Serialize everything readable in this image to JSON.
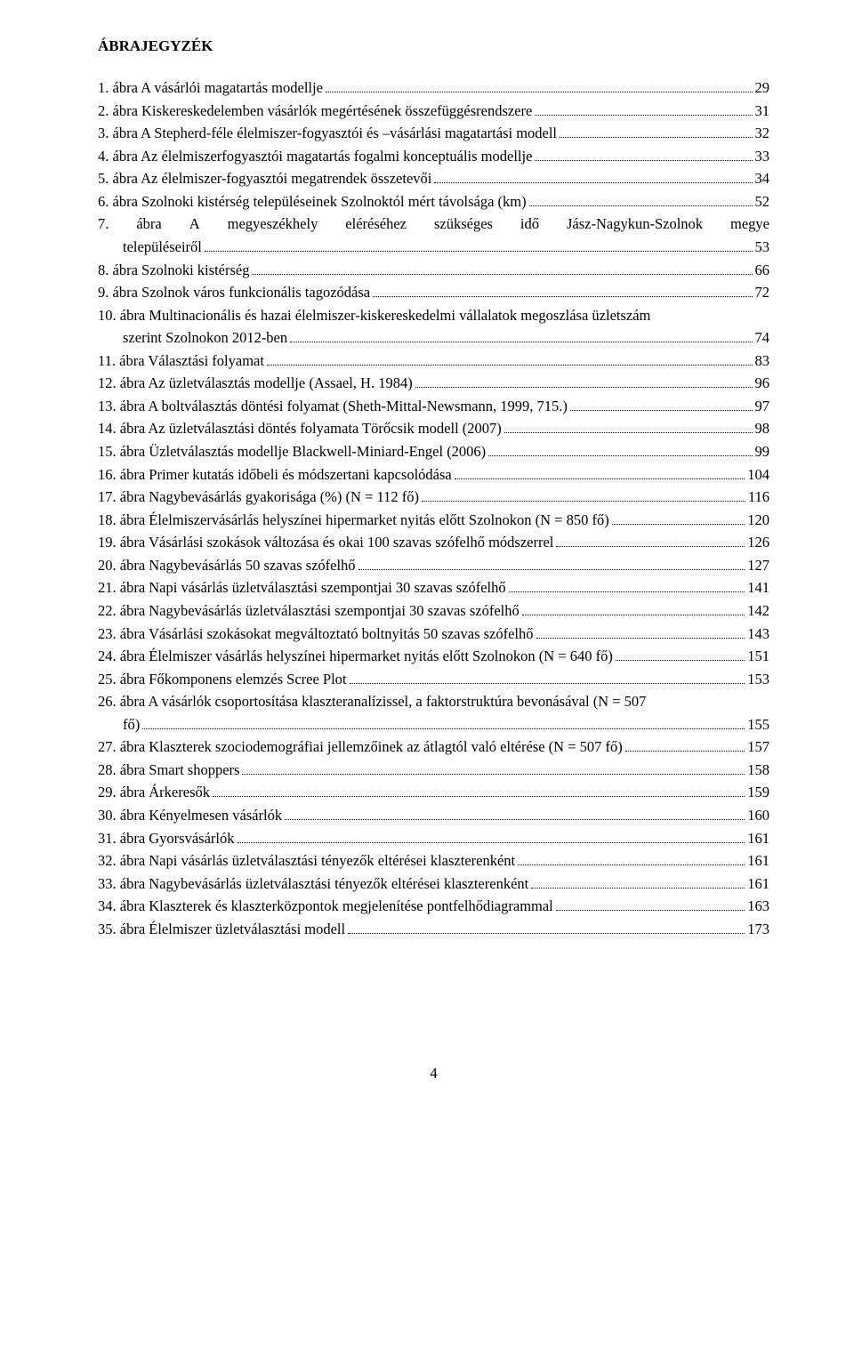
{
  "title": "ÁBRAJEGYZÉK",
  "page_number": "4",
  "entries": [
    {
      "type": "single",
      "label": "1. ábra A vásárlói magatartás modellje",
      "page": "29"
    },
    {
      "type": "single",
      "label": "2. ábra Kiskereskedelemben vásárlók megértésének összefüggésrendszere",
      "page": "31"
    },
    {
      "type": "single",
      "label": "3. ábra A Stepherd-féle élelmiszer-fogyasztói és –vásárlási magatartási modell",
      "page": "32"
    },
    {
      "type": "single",
      "label": "4. ábra Az élelmiszerfogyasztói magatartás fogalmi konceptuális modellje",
      "page": "33"
    },
    {
      "type": "single",
      "label": "5. ábra Az élelmiszer-fogyasztói megatrendek összetevői",
      "page": "34"
    },
    {
      "type": "single",
      "label": "6. ábra Szolnoki kistérség településeinek Szolnoktól mért távolsága (km)",
      "page": "52"
    },
    {
      "type": "justify",
      "words": [
        "7.",
        "ábra",
        "A",
        "megyeszékhely",
        "eléréséhez",
        "szükséges",
        "idő",
        "Jász-Nagykun-Szolnok",
        "megye"
      ],
      "cont_label": "településeiről",
      "page": "53"
    },
    {
      "type": "single",
      "label": "8. ábra Szolnoki kistérség",
      "page": "66"
    },
    {
      "type": "single",
      "label": "9. ábra Szolnok város funkcionális tagozódása",
      "page": "72"
    },
    {
      "type": "wrap",
      "label1": "10. ábra Multinacionális és hazai élelmiszer-kiskereskedelmi vállalatok megoszlása üzletszám",
      "label2": "szerint Szolnokon 2012-ben",
      "page": "74"
    },
    {
      "type": "single",
      "label": "11. ábra Választási folyamat",
      "page": "83"
    },
    {
      "type": "single",
      "label": "12. ábra Az üzletválasztás modellje (Assael, H. 1984)",
      "page": "96"
    },
    {
      "type": "single",
      "label": "13. ábra A boltválasztás döntési folyamat (Sheth-Mittal-Newsmann, 1999, 715.)",
      "page": "97"
    },
    {
      "type": "single",
      "label": "14. ábra Az üzletválasztási döntés folyamata Törőcsik modell (2007)",
      "page": "98"
    },
    {
      "type": "single",
      "label": "15. ábra Üzletválasztás modellje Blackwell-Miniard-Engel (2006)",
      "page": "99"
    },
    {
      "type": "single",
      "label": "16. ábra Primer kutatás időbeli és módszertani kapcsolódása",
      "page": "104"
    },
    {
      "type": "single",
      "label": "17. ábra Nagybevásárlás gyakorisága (%) (N = 112 fő)",
      "page": "116"
    },
    {
      "type": "single",
      "label": "18. ábra Élelmiszervásárlás helyszínei hipermarket nyitás előtt Szolnokon (N = 850 fő)",
      "page": "120"
    },
    {
      "type": "single",
      "label": "19. ábra Vásárlási szokások változása és okai 100 szavas szófelhő módszerrel",
      "page": "126"
    },
    {
      "type": "single",
      "label": "20. ábra Nagybevásárlás 50 szavas szófelhő",
      "page": "127"
    },
    {
      "type": "single",
      "label": "21. ábra Napi vásárlás üzletválasztási szempontjai 30 szavas szófelhő",
      "page": "141"
    },
    {
      "type": "single",
      "label": "22. ábra Nagybevásárlás üzletválasztási szempontjai 30 szavas szófelhő",
      "page": "142"
    },
    {
      "type": "single",
      "label": "23. ábra Vásárlási szokásokat megváltoztató boltnyitás 50 szavas szófelhő",
      "page": "143"
    },
    {
      "type": "single",
      "label": "24. ábra Élelmiszer vásárlás helyszínei hipermarket nyitás előtt Szolnokon (N = 640 fő)",
      "page": "151"
    },
    {
      "type": "single",
      "label": "25. ábra Főkomponens elemzés Scree Plot",
      "page": "153"
    },
    {
      "type": "wrap",
      "label1": "26. ábra A vásárlók csoportosítása klaszteranalízissel, a faktorstruktúra bevonásával (N = 507",
      "label2": "fő)",
      "page": "155"
    },
    {
      "type": "single",
      "label": "27. ábra Klaszterek szociodemográfiai jellemzőinek az átlagtól való eltérése (N = 507 fő)",
      "page": "157"
    },
    {
      "type": "single",
      "label": "28. ábra Smart shoppers",
      "page": "158"
    },
    {
      "type": "single",
      "label": "29. ábra Árkeresők",
      "page": "159"
    },
    {
      "type": "single",
      "label": "30. ábra Kényelmesen vásárlók",
      "page": "160"
    },
    {
      "type": "single",
      "label": "31. ábra Gyorsvásárlók",
      "page": "161"
    },
    {
      "type": "single",
      "label": "32. ábra Napi vásárlás üzletválasztási tényezők eltérései klaszterenként",
      "page": "161"
    },
    {
      "type": "single",
      "label": "33. ábra Nagybevásárlás üzletválasztási tényezők eltérései klaszterenként",
      "page": "161"
    },
    {
      "type": "single",
      "label": "34. ábra Klaszterek és klaszterközpontok megjelenítése pontfelhődiagrammal",
      "page": "163"
    },
    {
      "type": "single",
      "label": "35. ábra Élelmiszer üzletválasztási modell",
      "page": "173"
    }
  ]
}
